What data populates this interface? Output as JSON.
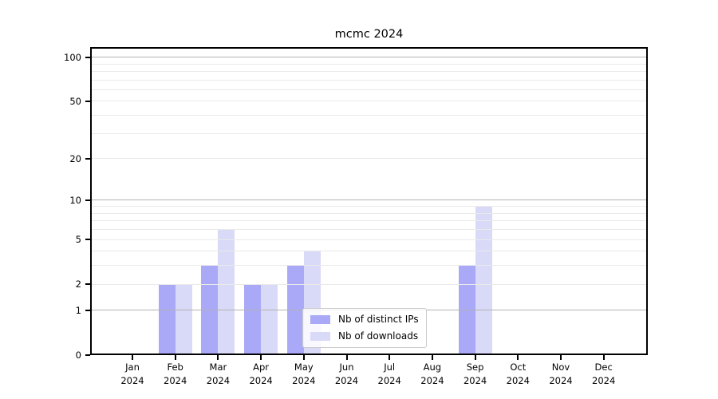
{
  "chart_data": {
    "type": "bar",
    "title": "mcmc 2024",
    "categories": [
      "Jan",
      "Feb",
      "Mar",
      "Apr",
      "May",
      "Jun",
      "Jul",
      "Aug",
      "Sep",
      "Oct",
      "Nov",
      "Dec"
    ],
    "category_year": "2024",
    "series": [
      {
        "name": "Nb of distinct IPs",
        "color": "#a9a9f7",
        "values": [
          0,
          2,
          3,
          2,
          3,
          0,
          0,
          0,
          3,
          0,
          0,
          0
        ]
      },
      {
        "name": "Nb of downloads",
        "color": "#d9d9f8",
        "values": [
          0,
          2,
          6,
          2,
          4,
          0,
          0,
          0,
          9,
          0,
          0,
          0
        ]
      }
    ],
    "xlabel": "",
    "ylabel": "",
    "y_scale": "log1p",
    "ylim": [
      0,
      117
    ],
    "y_ticks": [
      0,
      1,
      2,
      5,
      10,
      20,
      50,
      100
    ],
    "y_major_gridlines": [
      1,
      10,
      100
    ],
    "y_minor_gridlines": [
      2,
      3,
      4,
      5,
      6,
      7,
      8,
      9,
      20,
      30,
      40,
      50,
      60,
      70,
      80,
      90
    ],
    "grid": "on",
    "grid_over_bars": true,
    "legend_position": "inside-lower-center",
    "colors": {
      "major_grid": "#b3b3b3",
      "minor_grid": "#eaeaea",
      "spine": "#000000",
      "legend_border": "#cccccc",
      "background": "#ffffff",
      "text": "#000000"
    }
  }
}
